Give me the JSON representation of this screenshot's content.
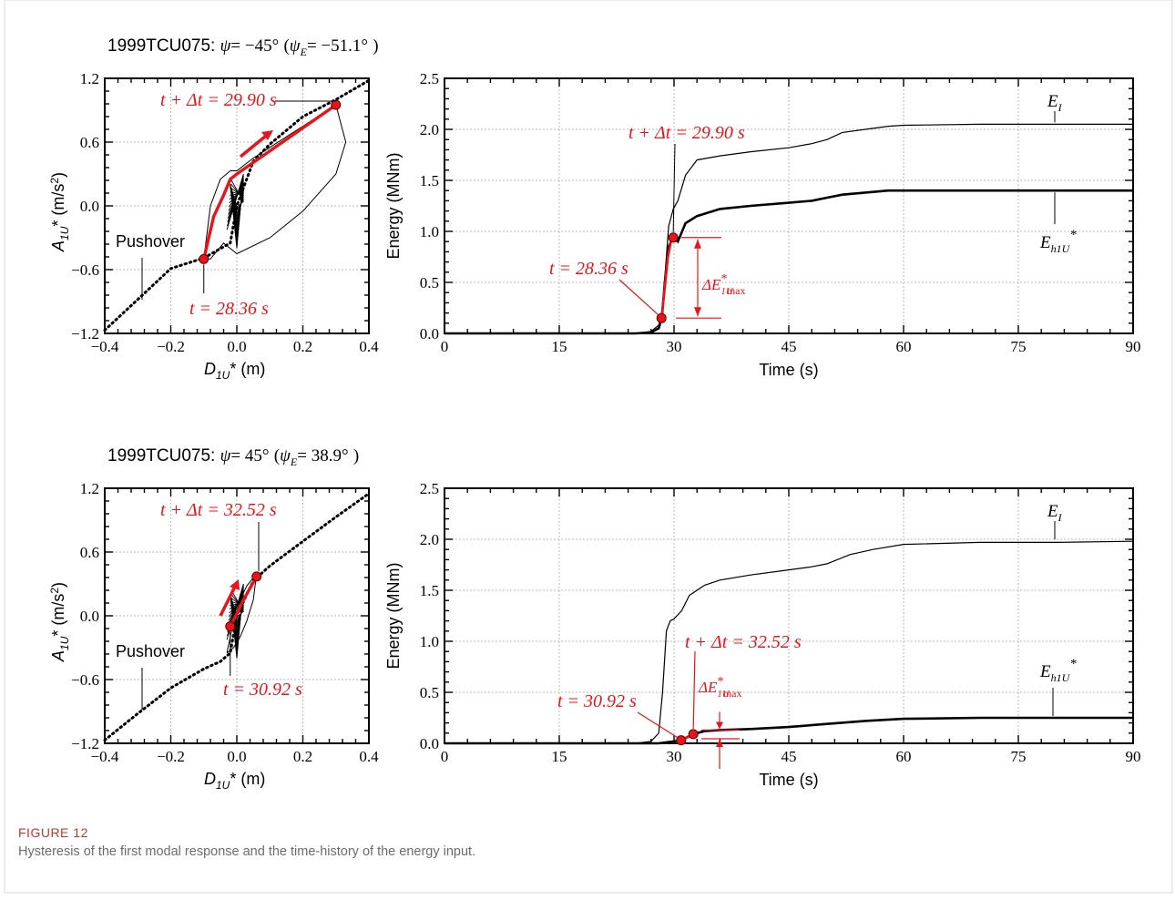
{
  "figure": {
    "label": "FIGURE 12",
    "caption": "Hysteresis of the first modal response and the time-history of the energy input."
  },
  "colors": {
    "red": "#e8141c",
    "black": "#000000",
    "grid": "#b8b8b8",
    "caption_label": "#c0392b"
  },
  "panels": [
    {
      "title_prefix": "1999TCU075: ",
      "psi_symbol": "ψ",
      "psi_value": "= −45°",
      "psiE_symbol": "ψ",
      "psiE_sub": "E",
      "psiE_value": "= −51.1°",
      "open": "(",
      "close": ")",
      "hysteresis": {
        "xlabel": "D",
        "xlabel_sub": "1U",
        "xlabel_unit": "* (m)",
        "ylabel": "A",
        "ylabel_sub": "1U",
        "ylabel_unit": "* (m/s",
        "x_ticks": [
          "−0.4",
          "−0.2",
          "0.0",
          "0.2",
          "0.4"
        ],
        "y_ticks": [
          "1.2",
          "0.6",
          "0.0",
          "−0.6",
          "−1.2"
        ],
        "pushover_label": "Pushover",
        "label_start": "t = 28.36 s",
        "label_end": "t + Δt = 29.90 s"
      },
      "energy": {
        "ylabel": "Energy (MNm)",
        "xlabel": "Time (s)",
        "x_ticks": [
          "0",
          "15",
          "30",
          "45",
          "60",
          "75",
          "90"
        ],
        "y_ticks": [
          "0.0",
          "0.5",
          "1.0",
          "1.5",
          "2.0",
          "2.5"
        ],
        "label_start": "t = 28.36 s",
        "label_end": "t + Δt = 29.90 s",
        "delta_label": "ΔE",
        "delta_sub": "1U",
        "delta_sup": "*",
        "delta_max": "max",
        "ei_label": "E",
        "ei_sub": "I",
        "eh_label": "E",
        "eh_sub": "h1U",
        "eh_sup": "*"
      }
    },
    {
      "title_prefix": "1999TCU075: ",
      "psi_symbol": "ψ",
      "psi_value": "= 45°",
      "psiE_symbol": "ψ",
      "psiE_sub": "E",
      "psiE_value": "= 38.9°",
      "open": "(",
      "close": ")",
      "hysteresis": {
        "xlabel": "D",
        "xlabel_sub": "1U",
        "xlabel_unit": "* (m)",
        "ylabel": "A",
        "ylabel_sub": "1U",
        "ylabel_unit": "* (m/s",
        "x_ticks": [
          "−0.4",
          "−0.2",
          "0.0",
          "0.2",
          "0.4"
        ],
        "y_ticks": [
          "1.2",
          "0.6",
          "0.0",
          "−0.6",
          "−1.2"
        ],
        "pushover_label": "Pushover",
        "label_start": "t = 30.92 s",
        "label_end": "t + Δt = 32.52 s"
      },
      "energy": {
        "ylabel": "Energy (MNm)",
        "xlabel": "Time (s)",
        "x_ticks": [
          "0",
          "15",
          "30",
          "45",
          "60",
          "75",
          "90"
        ],
        "y_ticks": [
          "0.0",
          "0.5",
          "1.0",
          "1.5",
          "2.0",
          "2.5"
        ],
        "label_start": "t = 30.92 s",
        "label_end": "t + Δt = 32.52 s",
        "delta_label": "ΔE",
        "delta_sub": "1U",
        "delta_sup": "*",
        "delta_max": "max",
        "ei_label": "E",
        "ei_sub": "I",
        "eh_label": "E",
        "eh_sub": "h1U",
        "eh_sup": "*"
      }
    }
  ],
  "chart_data": [
    {
      "type": "line",
      "title": "1999TCU075: ψ = −45° (ψE = −51.1°)",
      "xlabel": "D1U* (m)",
      "ylabel": "A1U* (m/s2)",
      "xlim": [
        -0.4,
        0.4
      ],
      "ylim": [
        -1.2,
        1.2
      ],
      "grid": true,
      "series": [
        {
          "name": "Pushover",
          "x": [
            -0.4,
            -0.3,
            -0.2,
            -0.1,
            -0.02,
            0.0,
            0.05,
            0.1,
            0.2,
            0.3,
            0.4
          ],
          "y": [
            -1.17,
            -0.88,
            -0.59,
            -0.49,
            -0.35,
            0.0,
            0.42,
            0.58,
            0.84,
            1.0,
            1.18
          ]
        },
        {
          "name": "Hysteresis",
          "x": [
            -0.1,
            -0.08,
            -0.05,
            -0.02,
            0.0,
            0.05,
            0.1,
            0.2,
            0.3,
            0.33,
            0.3,
            0.2,
            0.1,
            0.0,
            -0.04,
            -0.08,
            -0.1
          ],
          "y": [
            -0.5,
            0.0,
            0.25,
            0.33,
            0.33,
            0.45,
            0.55,
            0.75,
            0.95,
            0.6,
            0.3,
            -0.05,
            -0.3,
            -0.45,
            -0.35,
            -0.5,
            -0.5
          ]
        }
      ],
      "highlight": {
        "x": [
          -0.1,
          -0.07,
          -0.04,
          -0.02,
          0.0,
          0.3
        ],
        "y": [
          -0.5,
          -0.1,
          0.1,
          0.25,
          0.3,
          0.95
        ]
      },
      "points": [
        {
          "label": "t = 28.36 s",
          "x": -0.1,
          "y": -0.5
        },
        {
          "label": "t + Δt = 29.90 s",
          "x": 0.3,
          "y": 0.95
        }
      ]
    },
    {
      "type": "line",
      "xlabel": "Time (s)",
      "ylabel": "Energy (MNm)",
      "xlim": [
        0,
        90
      ],
      "ylim": [
        0,
        2.5
      ],
      "grid": true,
      "series": [
        {
          "name": "EI",
          "x": [
            0,
            25,
            27,
            28,
            28.4,
            28.8,
            29.3,
            29.9,
            30.5,
            31.5,
            33,
            36,
            40,
            45,
            48,
            50,
            52,
            55,
            58,
            60,
            70,
            80,
            90
          ],
          "y": [
            0,
            0,
            0.02,
            0.08,
            0.2,
            0.55,
            1.05,
            1.22,
            1.3,
            1.55,
            1.7,
            1.74,
            1.78,
            1.82,
            1.86,
            1.9,
            1.97,
            2.0,
            2.03,
            2.04,
            2.05,
            2.05,
            2.05
          ]
        },
        {
          "name": "Eh1U*",
          "x": [
            0,
            25,
            27,
            28,
            28.4,
            28.8,
            29.3,
            29.9,
            30.5,
            31.5,
            33,
            36,
            40,
            45,
            48,
            50,
            52,
            55,
            58,
            60,
            70,
            80,
            90
          ],
          "y": [
            0,
            0,
            0.01,
            0.05,
            0.15,
            0.5,
            0.85,
            0.94,
            0.9,
            1.08,
            1.15,
            1.22,
            1.25,
            1.28,
            1.3,
            1.33,
            1.36,
            1.38,
            1.4,
            1.4,
            1.4,
            1.4,
            1.4
          ]
        }
      ],
      "highlight": {
        "x": [
          28.36,
          28.8,
          29.2,
          29.6,
          29.9
        ],
        "y": [
          0.15,
          0.45,
          0.75,
          0.9,
          0.94
        ]
      },
      "points": [
        {
          "label": "t = 28.36 s",
          "x": 28.36,
          "y": 0.15
        },
        {
          "label": "t + Δt = 29.90 s",
          "x": 29.9,
          "y": 0.94
        }
      ]
    },
    {
      "type": "line",
      "title": "1999TCU075: ψ = 45° (ψE = 38.9°)",
      "xlabel": "D1U* (m)",
      "ylabel": "A1U* (m/s2)",
      "xlim": [
        -0.4,
        0.4
      ],
      "ylim": [
        -1.2,
        1.2
      ],
      "grid": true,
      "series": [
        {
          "name": "Pushover",
          "x": [
            -0.4,
            -0.3,
            -0.2,
            -0.1,
            -0.05,
            -0.02,
            0.0,
            0.05,
            0.1,
            0.2,
            0.3,
            0.4
          ],
          "y": [
            -1.17,
            -0.92,
            -0.68,
            -0.5,
            -0.43,
            -0.35,
            0.0,
            0.33,
            0.47,
            0.7,
            0.93,
            1.15
          ]
        },
        {
          "name": "Hysteresis",
          "x": [
            -0.03,
            -0.01,
            0.01,
            0.03,
            0.06,
            0.05,
            0.03,
            0.01,
            -0.01,
            -0.03
          ],
          "y": [
            -0.35,
            -0.05,
            0.15,
            0.28,
            0.4,
            0.15,
            -0.05,
            -0.2,
            -0.3,
            -0.35
          ]
        }
      ],
      "highlight": {
        "x": [
          -0.02,
          0.0,
          0.02,
          0.04,
          0.06
        ],
        "y": [
          -0.1,
          0.02,
          0.15,
          0.26,
          0.37
        ]
      },
      "points": [
        {
          "label": "t = 30.92 s",
          "x": -0.02,
          "y": -0.1
        },
        {
          "label": "t + Δt = 32.52 s",
          "x": 0.06,
          "y": 0.37
        }
      ]
    },
    {
      "type": "line",
      "xlabel": "Time (s)",
      "ylabel": "Energy (MNm)",
      "xlim": [
        0,
        90
      ],
      "ylim": [
        0,
        2.5
      ],
      "grid": true,
      "series": [
        {
          "name": "EI",
          "x": [
            0,
            25,
            27,
            28,
            28.5,
            29,
            29.5,
            30,
            31,
            32,
            34,
            36,
            40,
            45,
            48,
            50,
            53,
            56,
            60,
            70,
            80,
            90
          ],
          "y": [
            0,
            0,
            0.02,
            0.1,
            0.5,
            1.1,
            1.2,
            1.22,
            1.3,
            1.45,
            1.55,
            1.6,
            1.65,
            1.7,
            1.73,
            1.76,
            1.85,
            1.9,
            1.95,
            1.97,
            1.97,
            1.98
          ]
        },
        {
          "name": "Eh1U*",
          "x": [
            0,
            25,
            28,
            30,
            30.92,
            32.52,
            34,
            36,
            40,
            45,
            50,
            55,
            60,
            70,
            80,
            90
          ],
          "y": [
            0,
            0,
            0.0,
            0.02,
            0.03,
            0.09,
            0.12,
            0.13,
            0.14,
            0.16,
            0.19,
            0.22,
            0.24,
            0.25,
            0.25,
            0.25
          ]
        }
      ],
      "highlight": {
        "x": [
          30.92,
          31.5,
          32.0,
          32.52
        ],
        "y": [
          0.03,
          0.05,
          0.07,
          0.09
        ]
      },
      "points": [
        {
          "label": "t = 30.92 s",
          "x": 30.92,
          "y": 0.03
        },
        {
          "label": "t + Δt = 32.52 s",
          "x": 32.52,
          "y": 0.09
        }
      ]
    }
  ]
}
